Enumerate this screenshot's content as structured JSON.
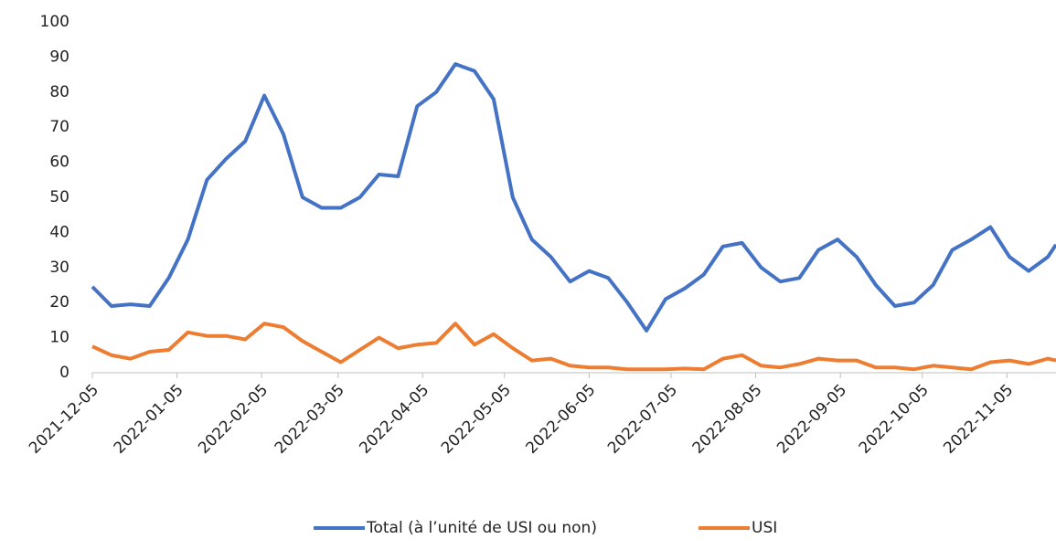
{
  "chart_data": {
    "type": "line",
    "x": [
      "2021-12-05",
      "2021-12-12",
      "2021-12-19",
      "2021-12-26",
      "2022-01-02",
      "2022-01-09",
      "2022-01-16",
      "2022-01-23",
      "2022-01-30",
      "2022-02-06",
      "2022-02-13",
      "2022-02-20",
      "2022-02-27",
      "2022-03-06",
      "2022-03-13",
      "2022-03-20",
      "2022-03-27",
      "2022-04-03",
      "2022-04-10",
      "2022-04-17",
      "2022-04-24",
      "2022-05-01",
      "2022-05-08",
      "2022-05-15",
      "2022-05-22",
      "2022-05-29",
      "2022-06-05",
      "2022-06-12",
      "2022-06-19",
      "2022-06-26",
      "2022-07-03",
      "2022-07-10",
      "2022-07-17",
      "2022-07-24",
      "2022-07-31",
      "2022-08-07",
      "2022-08-14",
      "2022-08-21",
      "2022-08-28",
      "2022-09-04",
      "2022-09-11",
      "2022-09-18",
      "2022-09-25",
      "2022-10-02",
      "2022-10-09",
      "2022-10-16",
      "2022-10-23",
      "2022-10-30",
      "2022-11-06",
      "2022-11-13",
      "2022-11-20",
      "2022-11-23"
    ],
    "series": [
      {
        "name": "Total (à l’unité de USI ou non)",
        "color": "#4472c4",
        "values": [
          24.5,
          19,
          19.5,
          19,
          27,
          38,
          55,
          61,
          66,
          79,
          68,
          50,
          47,
          47,
          50,
          56.5,
          56,
          76,
          80,
          88,
          86,
          78,
          50,
          38,
          33,
          26,
          29,
          27,
          20,
          12,
          21,
          24,
          28,
          36,
          37,
          30,
          26,
          27,
          35,
          38,
          33,
          25,
          19,
          20,
          25,
          35,
          38,
          41.5,
          33,
          29,
          33,
          36.5
        ]
      },
      {
        "name": "USI",
        "color": "#ed7d31",
        "values": [
          7.5,
          5,
          4,
          6,
          6.5,
          11.5,
          10.5,
          10.5,
          9.5,
          14,
          13,
          9,
          6,
          3,
          6.5,
          10,
          7,
          8,
          8.5,
          14,
          8,
          11,
          7,
          3.5,
          4,
          2,
          1.5,
          1.5,
          1,
          1,
          1,
          1.2,
          1,
          4,
          5,
          2,
          1.5,
          2.5,
          4,
          3.5,
          3.5,
          1.5,
          1.5,
          1,
          2,
          1.5,
          1,
          3,
          3.5,
          2.5,
          4,
          3.5
        ]
      }
    ],
    "xlim": [
      "2021-12-05",
      "2022-11-23"
    ],
    "xticks": [
      "2021-12-05",
      "2022-01-05",
      "2022-02-05",
      "2022-03-05",
      "2022-04-05",
      "2022-05-05",
      "2022-06-05",
      "2022-07-05",
      "2022-08-05",
      "2022-09-05",
      "2022-10-05",
      "2022-11-05"
    ],
    "ylim": [
      0,
      100
    ],
    "yticks": [
      0,
      10,
      20,
      30,
      40,
      50,
      60,
      70,
      80,
      90,
      100
    ],
    "legend": "bottom"
  }
}
